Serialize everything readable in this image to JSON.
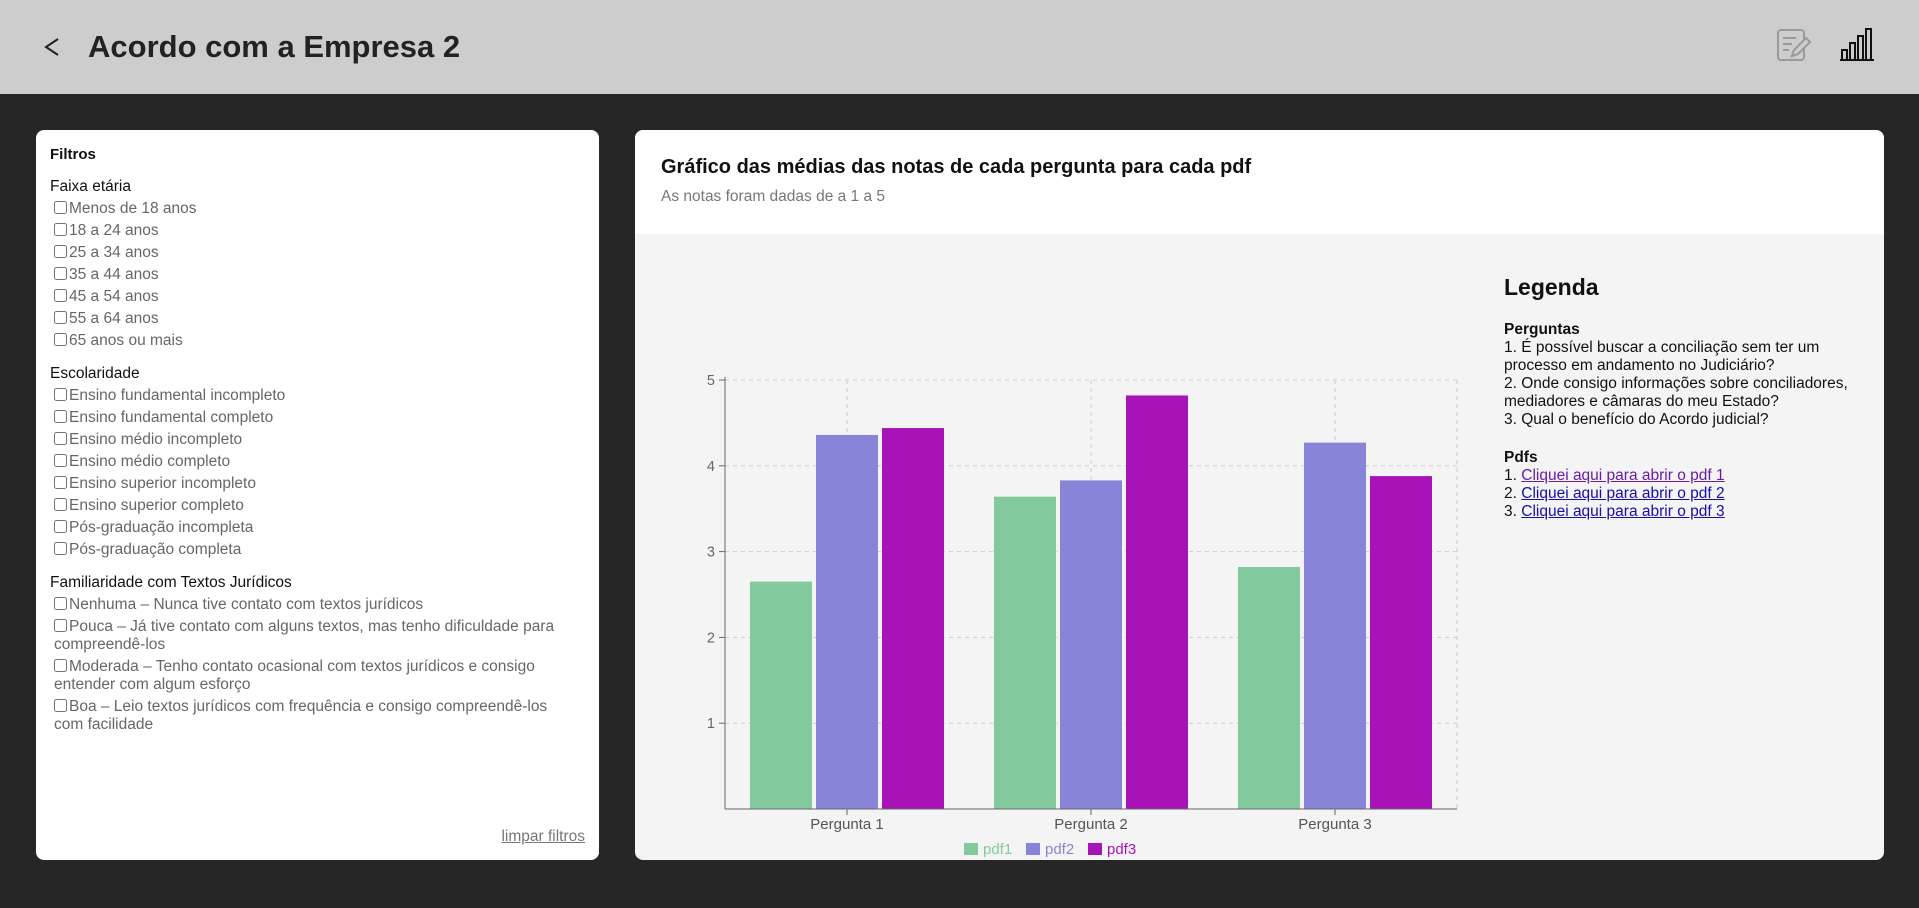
{
  "header": {
    "title": "Acordo com a Empresa 2",
    "back_glyph": "<"
  },
  "filters": {
    "title": "Filtros",
    "groups": [
      {
        "title": "Faixa etária",
        "options": [
          "Menos de 18 anos",
          "18 a 24 anos",
          "25 a 34 anos",
          "35 a 44 anos",
          "45 a 54 anos",
          "55 a 64 anos",
          "65 anos ou mais"
        ]
      },
      {
        "title": "Escolaridade",
        "options": [
          "Ensino fundamental incompleto",
          "Ensino fundamental completo",
          "Ensino médio incompleto",
          "Ensino médio completo",
          "Ensino superior incompleto",
          "Ensino superior completo",
          "Pós-graduação incompleta",
          "Pós-graduação completa"
        ]
      },
      {
        "title": "Familiaridade com Textos Jurídicos",
        "options": [
          "Nenhuma – Nunca tive contato com textos jurídicos",
          "Pouca – Já tive contato com alguns textos, mas tenho dificuldade para compreendê-los",
          "Moderada – Tenho contato ocasional com textos jurídicos e consigo entender com algum esforço",
          "Boa – Leio textos jurídicos com frequência e consigo compreendê-los com facilidade"
        ]
      }
    ],
    "clear_label": "limpar filtros"
  },
  "chart_panel": {
    "title": "Gráfico das médias das notas de cada pergunta para cada pdf",
    "subtitle": "As notas foram dadas de a 1 a 5"
  },
  "chart_data": {
    "type": "bar",
    "categories": [
      "Pergunta 1",
      "Pergunta 2",
      "Pergunta 3"
    ],
    "series": [
      {
        "name": "pdf1",
        "values": [
          2.65,
          3.64,
          2.82
        ],
        "color": "#82ca9d"
      },
      {
        "name": "pdf2",
        "values": [
          4.36,
          3.83,
          4.27
        ],
        "color": "#8884d8"
      },
      {
        "name": "pdf3",
        "values": [
          4.44,
          4.82,
          3.88
        ],
        "color": "#a813b8"
      }
    ],
    "yticks": [
      1,
      2,
      3,
      4,
      5
    ],
    "ylim": [
      0,
      5
    ],
    "grid": true,
    "legend_position": "bottom"
  },
  "legend": {
    "title": "Legenda",
    "questions_title": "Perguntas",
    "questions": [
      "1. É possível buscar a conciliação sem ter um processo em andamento no Judiciário?",
      "2. Onde consigo informações sobre conciliadores, mediadores e câmaras do meu Estado?",
      "3. Qual o benefício do Acordo judicial?"
    ],
    "pdfs_title": "Pdfs",
    "pdf_links": [
      {
        "num": "1.",
        "label": "Cliquei aqui para abrir o pdf 1"
      },
      {
        "num": "2.",
        "label": "Cliquei aqui para abrir o pdf 2"
      },
      {
        "num": "3.",
        "label": "Cliquei aqui para abrir o pdf 3"
      }
    ]
  },
  "icons": {
    "back": "back-arrow-icon",
    "edit": "edit-document-icon",
    "stats": "bar-chart-icon"
  }
}
